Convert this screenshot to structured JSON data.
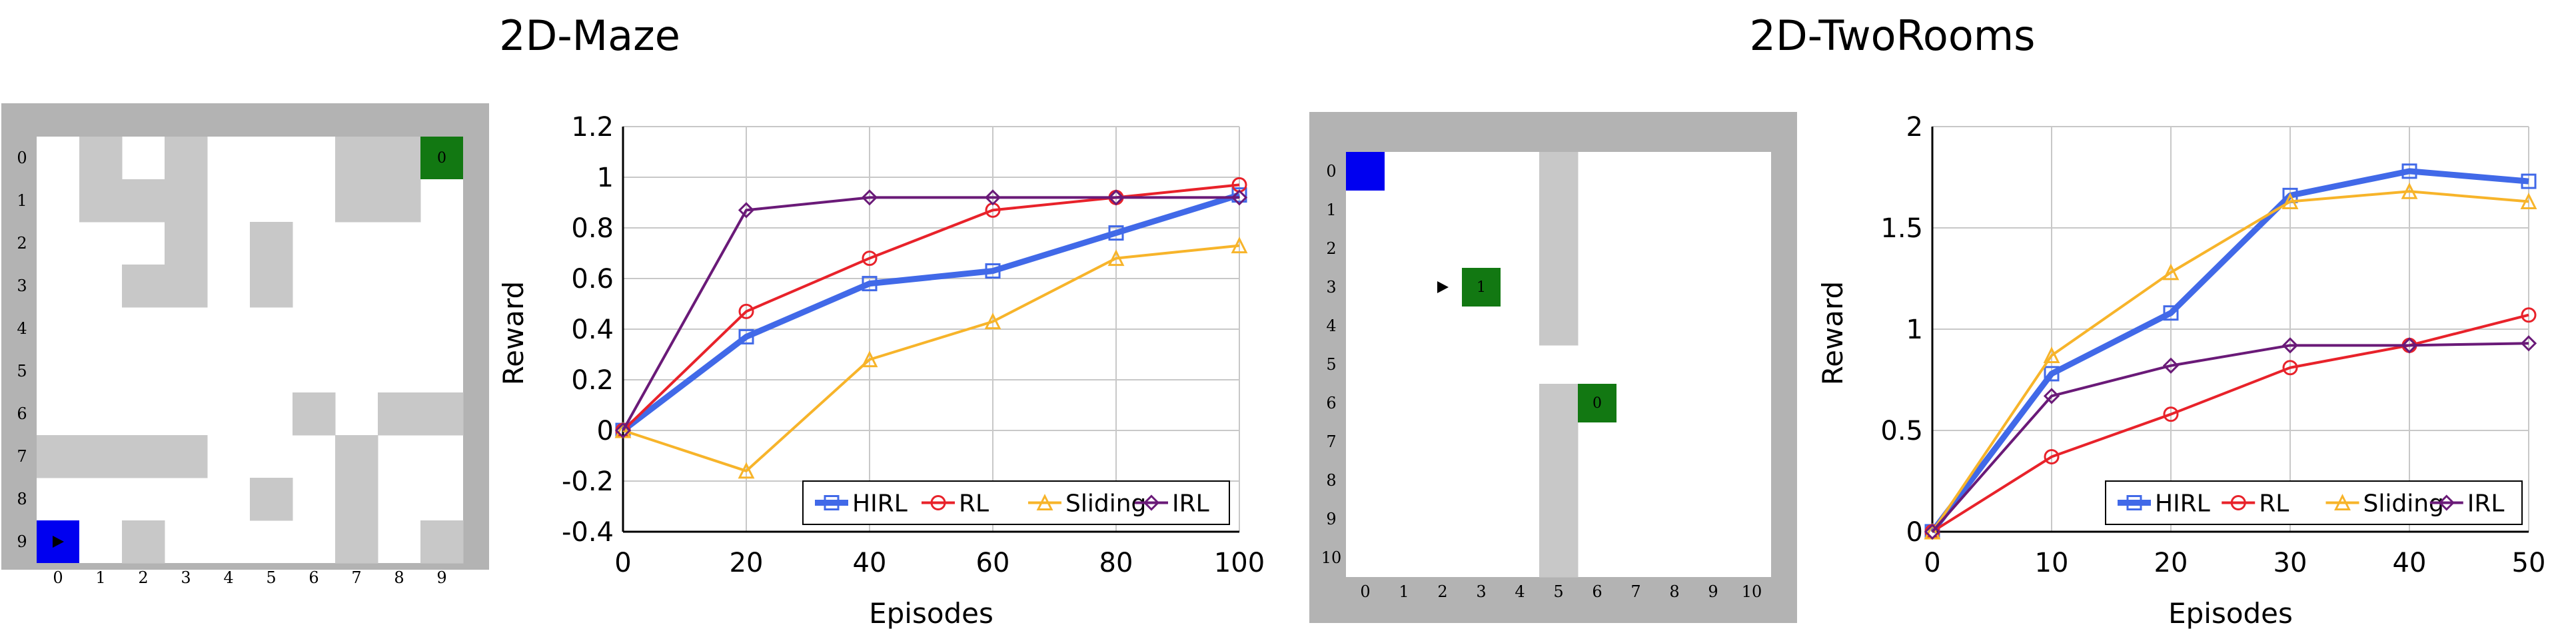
{
  "titles": [
    "2D-Maze",
    "2D-TwoRooms"
  ],
  "colors": {
    "HIRL": "#4169e8",
    "RL": "#e8222a",
    "Sliding": "#f7b42a",
    "IRL": "#6a1a78",
    "wall": "#c8c8c8",
    "frame": "#b3b3b3",
    "start": "#0000f0",
    "goal": "#127812"
  },
  "grids": [
    {
      "name": "2D-Maze grid",
      "rows": 10,
      "cols": 10,
      "row_labels": [
        "0",
        "1",
        "2",
        "3",
        "4",
        "5",
        "6",
        "7",
        "8",
        "9"
      ],
      "col_labels": [
        "0",
        "1",
        "2",
        "3",
        "4",
        "5",
        "6",
        "7",
        "8",
        "9"
      ],
      "walls": [
        [
          0,
          1
        ],
        [
          0,
          3
        ],
        [
          0,
          7
        ],
        [
          0,
          8
        ],
        [
          1,
          1
        ],
        [
          1,
          2
        ],
        [
          1,
          3
        ],
        [
          1,
          7
        ],
        [
          1,
          8
        ],
        [
          2,
          3
        ],
        [
          2,
          5
        ],
        [
          3,
          2
        ],
        [
          3,
          3
        ],
        [
          3,
          5
        ],
        [
          6,
          6
        ],
        [
          6,
          8
        ],
        [
          6,
          9
        ],
        [
          7,
          0
        ],
        [
          7,
          1
        ],
        [
          7,
          2
        ],
        [
          7,
          3
        ],
        [
          7,
          7
        ],
        [
          8,
          5
        ],
        [
          8,
          7
        ],
        [
          9,
          2
        ],
        [
          9,
          7
        ],
        [
          9,
          9
        ]
      ],
      "start": [
        9,
        0
      ],
      "goals": [
        {
          "cell": [
            0,
            9
          ],
          "label": "0"
        }
      ],
      "arrow": [
        9,
        0
      ]
    },
    {
      "name": "2D-TwoRooms grid",
      "rows": 11,
      "cols": 11,
      "row_labels": [
        "0",
        "1",
        "2",
        "3",
        "4",
        "5",
        "6",
        "7",
        "8",
        "9",
        "10"
      ],
      "col_labels": [
        "0",
        "1",
        "2",
        "3",
        "4",
        "5",
        "6",
        "7",
        "8",
        "9",
        "10"
      ],
      "walls": [
        [
          0,
          5
        ],
        [
          1,
          5
        ],
        [
          2,
          5
        ],
        [
          3,
          5
        ],
        [
          4,
          5
        ],
        [
          6,
          5
        ],
        [
          7,
          5
        ],
        [
          8,
          5
        ],
        [
          9,
          5
        ],
        [
          10,
          5
        ]
      ],
      "start": [
        0,
        0
      ],
      "goals": [
        {
          "cell": [
            3,
            3
          ],
          "label": "1"
        },
        {
          "cell": [
            6,
            6
          ],
          "label": "0"
        }
      ],
      "arrow": [
        3,
        2
      ]
    }
  ],
  "chart_data": [
    {
      "type": "line",
      "title": "",
      "xlabel": "Episodes",
      "ylabel": "Reward",
      "x": [
        0,
        20,
        40,
        60,
        80,
        100
      ],
      "xticks": [
        "0",
        "20",
        "40",
        "60",
        "80",
        "100"
      ],
      "yticks": [
        "-0.4",
        "-0.2",
        "0",
        "0.2",
        "0.4",
        "0.6",
        "0.8",
        "1",
        "1.2"
      ],
      "xlim": [
        0,
        100
      ],
      "ylim": [
        -0.4,
        1.2
      ],
      "grid": true,
      "legend": "bottom-right",
      "series": [
        {
          "name": "HIRL",
          "marker": "square",
          "values": [
            0,
            0.37,
            0.58,
            0.63,
            0.78,
            0.93
          ]
        },
        {
          "name": "RL",
          "marker": "circle",
          "values": [
            0,
            0.47,
            0.68,
            0.87,
            0.92,
            0.97
          ]
        },
        {
          "name": "Sliding",
          "marker": "triangle",
          "values": [
            0,
            -0.16,
            0.28,
            0.43,
            0.68,
            0.73
          ]
        },
        {
          "name": "IRL",
          "marker": "diamond",
          "values": [
            0,
            0.87,
            0.92,
            0.92,
            0.92,
            0.92
          ]
        }
      ]
    },
    {
      "type": "line",
      "title": "",
      "xlabel": "Episodes",
      "ylabel": "Reward",
      "x": [
        0,
        10,
        20,
        30,
        40,
        50
      ],
      "xticks": [
        "0",
        "10",
        "20",
        "30",
        "40",
        "50"
      ],
      "yticks": [
        "0",
        "0.5",
        "1",
        "1.5",
        "2"
      ],
      "xlim": [
        0,
        50
      ],
      "ylim": [
        0,
        2
      ],
      "grid": true,
      "legend": "bottom-right",
      "series": [
        {
          "name": "HIRL",
          "marker": "square",
          "values": [
            0,
            0.78,
            1.08,
            1.66,
            1.78,
            1.73
          ]
        },
        {
          "name": "RL",
          "marker": "circle",
          "values": [
            0,
            0.37,
            0.58,
            0.81,
            0.92,
            1.07
          ]
        },
        {
          "name": "Sliding",
          "marker": "triangle",
          "values": [
            0,
            0.87,
            1.28,
            1.63,
            1.68,
            1.63
          ]
        },
        {
          "name": "IRL",
          "marker": "diamond",
          "values": [
            0,
            0.67,
            0.82,
            0.92,
            0.92,
            0.93
          ]
        }
      ]
    }
  ]
}
